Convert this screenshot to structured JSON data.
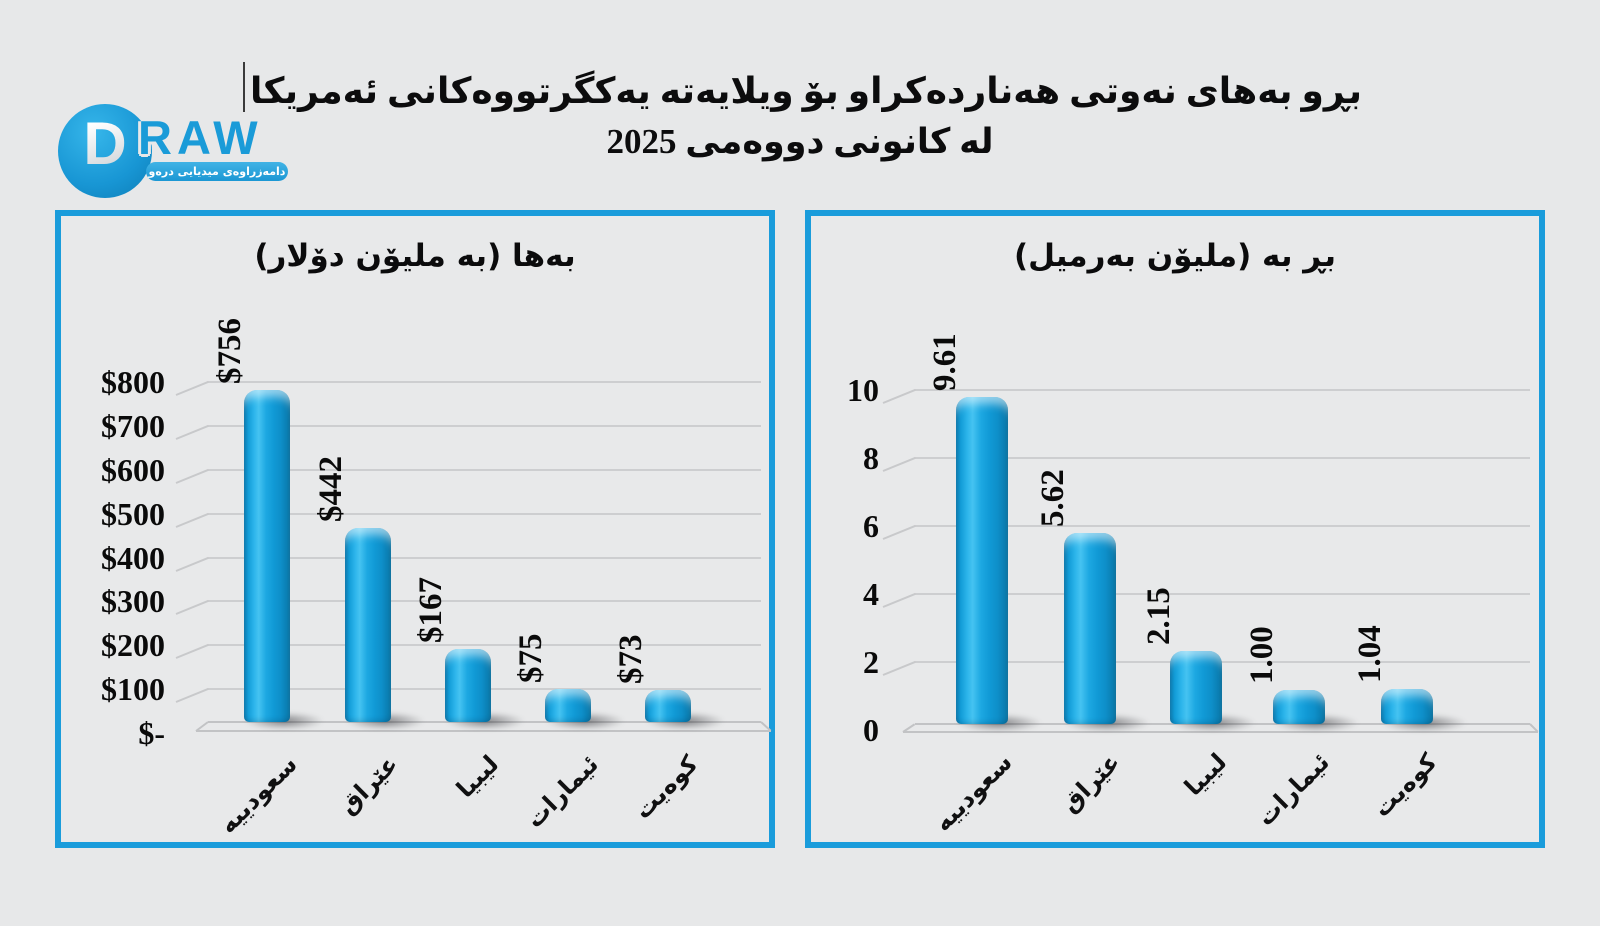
{
  "page": {
    "background_color": "#e7e8e9",
    "accent_color": "#1a9cdb"
  },
  "logo": {
    "letter": "D",
    "wordmark": "RAW",
    "tagline": "دامەزراوەی میدیایی درەو",
    "circle_color": "#1896d4",
    "wordmark_color": "#1a9bd8"
  },
  "header": {
    "title_line1": "بڕو بەهای نەوتی هەناردەکراو بۆ ویلایەتە یەکگرتووەکانی ئەمریکا",
    "title_line2": "لە کانونی دووەمی 2025"
  },
  "chart_data": [
    {
      "type": "bar",
      "title": "بەها (بە ملیۆن دۆلار)",
      "categories": [
        "سعودییه",
        "عێراق",
        "لیبیا",
        "ئیمارات",
        "کوەیت"
      ],
      "values": [
        756,
        442,
        167,
        75,
        73
      ],
      "data_labels": [
        "$756",
        "$442",
        "$167",
        "$75",
        "$73"
      ],
      "y_ticks": [
        "$800",
        "$700",
        "$600",
        "$500",
        "$400",
        "$300",
        "$200",
        "$100",
        "$-"
      ],
      "ylim": [
        0,
        800
      ],
      "xlabel": "",
      "ylabel": "",
      "grid": true,
      "legend": "none",
      "bar_color": "#149fdb",
      "style_3d": true
    },
    {
      "type": "bar",
      "title": "بڕ بە (ملیۆن بەرمیل)",
      "categories": [
        "سعودییه",
        "عێراق",
        "لیبیا",
        "ئیمارات",
        "کوەیت"
      ],
      "values": [
        9.61,
        5.62,
        2.15,
        1.0,
        1.04
      ],
      "data_labels": [
        "9.61",
        "5.62",
        "2.15",
        "1.00",
        "1.04"
      ],
      "y_ticks": [
        "10",
        "8",
        "6",
        "4",
        "2",
        "0"
      ],
      "ylim": [
        0,
        10
      ],
      "xlabel": "",
      "ylabel": "",
      "grid": true,
      "legend": "none",
      "bar_color": "#149fdb",
      "style_3d": true
    }
  ]
}
